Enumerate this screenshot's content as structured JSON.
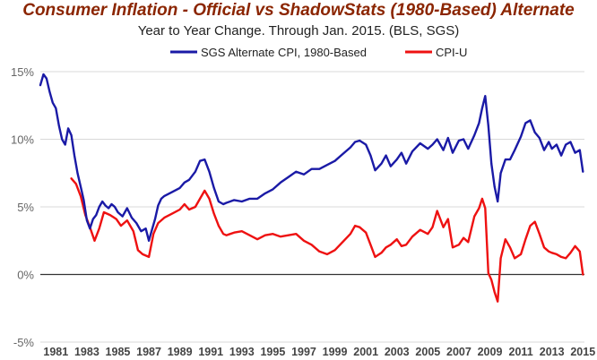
{
  "chart_data": {
    "type": "line",
    "title": "Consumer Inflation - Official vs ShadowStats (1980-Based) Alternate",
    "subtitle": "Year to Year Change. Through Jan. 2015.   (BLS, SGS)",
    "xlabel": "",
    "ylabel": "",
    "xlim": [
      1980.0,
      2015.1
    ],
    "ylim": [
      -5,
      15
    ],
    "grid": true,
    "legend_position": "top",
    "y_ticks": [
      "-5%",
      "0%",
      "5%",
      "10%",
      "15%"
    ],
    "x_ticks": [
      "1981",
      "1983",
      "1985",
      "1987",
      "1989",
      "1991",
      "1993",
      "1995",
      "1997",
      "1999",
      "2001",
      "2003",
      "2005",
      "2007",
      "2009",
      "2011",
      "2013",
      "2015"
    ],
    "series": [
      {
        "name": "SGS Alternate CPI, 1980-Based",
        "color": "#1a1aa6",
        "x": [
          1980.0,
          1980.2,
          1980.4,
          1980.6,
          1980.8,
          1981.0,
          1981.2,
          1981.4,
          1981.6,
          1981.8,
          1982.0,
          1982.2,
          1982.4,
          1982.6,
          1982.8,
          1983.0,
          1983.2,
          1983.4,
          1983.6,
          1983.8,
          1984.0,
          1984.2,
          1984.4,
          1984.6,
          1984.8,
          1985.0,
          1985.3,
          1985.6,
          1985.9,
          1986.2,
          1986.5,
          1986.8,
          1987.0,
          1987.2,
          1987.4,
          1987.6,
          1987.8,
          1988.0,
          1988.5,
          1989.0,
          1989.3,
          1989.6,
          1990.0,
          1990.3,
          1990.6,
          1990.9,
          1991.2,
          1991.5,
          1991.8,
          1992.0,
          1992.5,
          1993.0,
          1993.5,
          1994.0,
          1994.5,
          1995.0,
          1995.5,
          1996.0,
          1996.5,
          1997.0,
          1997.5,
          1998.0,
          1998.5,
          1999.0,
          1999.5,
          2000.0,
          2000.3,
          2000.6,
          2001.0,
          2001.3,
          2001.6,
          2002.0,
          2002.3,
          2002.6,
          2003.0,
          2003.3,
          2003.6,
          2004.0,
          2004.5,
          2005.0,
          2005.3,
          2005.6,
          2006.0,
          2006.3,
          2006.6,
          2007.0,
          2007.3,
          2007.6,
          2008.0,
          2008.3,
          2008.5,
          2008.7,
          2008.9,
          2009.1,
          2009.3,
          2009.5,
          2009.7,
          2010.0,
          2010.3,
          2010.6,
          2011.0,
          2011.3,
          2011.6,
          2011.9,
          2012.2,
          2012.5,
          2012.8,
          2013.0,
          2013.3,
          2013.6,
          2013.9,
          2014.2,
          2014.5,
          2014.8,
          2015.0
        ],
        "values": [
          14.0,
          14.8,
          14.5,
          13.5,
          12.7,
          12.3,
          11.0,
          10.0,
          9.6,
          10.8,
          10.3,
          8.8,
          7.5,
          6.5,
          5.5,
          4.0,
          3.4,
          4.1,
          4.4,
          5.0,
          5.4,
          5.1,
          4.9,
          5.2,
          5.0,
          4.6,
          4.3,
          4.9,
          4.2,
          3.8,
          3.2,
          3.4,
          2.5,
          3.3,
          4.1,
          5.1,
          5.6,
          5.8,
          6.1,
          6.4,
          6.8,
          7.0,
          7.6,
          8.4,
          8.5,
          7.6,
          6.4,
          5.4,
          5.2,
          5.3,
          5.5,
          5.4,
          5.6,
          5.6,
          6.0,
          6.3,
          6.8,
          7.2,
          7.6,
          7.4,
          7.8,
          7.8,
          8.1,
          8.4,
          8.9,
          9.4,
          9.8,
          9.9,
          9.6,
          8.8,
          7.7,
          8.2,
          8.8,
          8.0,
          8.5,
          9.0,
          8.2,
          9.1,
          9.7,
          9.3,
          9.6,
          10.0,
          9.2,
          10.1,
          9.0,
          9.9,
          10.0,
          9.3,
          10.3,
          11.2,
          12.3,
          13.2,
          11.0,
          8.2,
          6.5,
          5.4,
          7.5,
          8.5,
          8.5,
          9.2,
          10.2,
          11.2,
          11.4,
          10.5,
          10.1,
          9.2,
          9.8,
          9.3,
          9.6,
          8.8,
          9.6,
          9.8,
          9.0,
          9.2,
          7.6
        ]
      },
      {
        "name": "CPI-U",
        "color": "#ee1111",
        "x": [
          1982.0,
          1982.3,
          1982.6,
          1982.9,
          1983.2,
          1983.5,
          1983.8,
          1984.1,
          1984.5,
          1984.9,
          1985.2,
          1985.6,
          1986.0,
          1986.3,
          1986.6,
          1987.0,
          1987.3,
          1987.6,
          1988.0,
          1988.5,
          1989.0,
          1989.3,
          1989.6,
          1990.0,
          1990.3,
          1990.6,
          1990.9,
          1991.2,
          1991.5,
          1991.8,
          1992.0,
          1992.5,
          1993.0,
          1993.5,
          1994.0,
          1994.5,
          1995.0,
          1995.5,
          1996.0,
          1996.5,
          1997.0,
          1997.5,
          1998.0,
          1998.5,
          1999.0,
          1999.5,
          2000.0,
          2000.3,
          2000.6,
          2001.0,
          2001.3,
          2001.6,
          2002.0,
          2002.3,
          2002.6,
          2003.0,
          2003.3,
          2003.6,
          2004.0,
          2004.5,
          2005.0,
          2005.3,
          2005.6,
          2006.0,
          2006.3,
          2006.6,
          2007.0,
          2007.3,
          2007.6,
          2008.0,
          2008.3,
          2008.5,
          2008.7,
          2008.9,
          2009.1,
          2009.3,
          2009.5,
          2009.7,
          2010.0,
          2010.3,
          2010.6,
          2011.0,
          2011.3,
          2011.6,
          2011.9,
          2012.2,
          2012.5,
          2012.8,
          2013.0,
          2013.3,
          2013.6,
          2013.9,
          2014.2,
          2014.5,
          2014.8,
          2015.0
        ],
        "values": [
          7.1,
          6.7,
          5.8,
          4.4,
          3.5,
          2.5,
          3.4,
          4.6,
          4.4,
          4.1,
          3.6,
          4.0,
          3.2,
          1.8,
          1.5,
          1.3,
          3.0,
          3.8,
          4.2,
          4.5,
          4.8,
          5.2,
          4.8,
          5.0,
          5.6,
          6.2,
          5.6,
          4.5,
          3.6,
          3.0,
          2.9,
          3.1,
          3.2,
          2.9,
          2.6,
          2.9,
          3.0,
          2.8,
          2.9,
          3.0,
          2.5,
          2.2,
          1.7,
          1.5,
          1.8,
          2.4,
          3.0,
          3.6,
          3.5,
          3.1,
          2.2,
          1.3,
          1.6,
          2.0,
          2.2,
          2.6,
          2.1,
          2.2,
          2.8,
          3.3,
          3.0,
          3.5,
          4.7,
          3.5,
          4.1,
          2.0,
          2.2,
          2.7,
          2.4,
          4.3,
          4.9,
          5.6,
          4.9,
          0.1,
          -0.4,
          -1.3,
          -2.0,
          1.2,
          2.6,
          2.0,
          1.2,
          1.5,
          2.6,
          3.6,
          3.9,
          3.0,
          2.0,
          1.7,
          1.6,
          1.5,
          1.3,
          1.2,
          1.6,
          2.1,
          1.7,
          0.0
        ]
      }
    ]
  }
}
